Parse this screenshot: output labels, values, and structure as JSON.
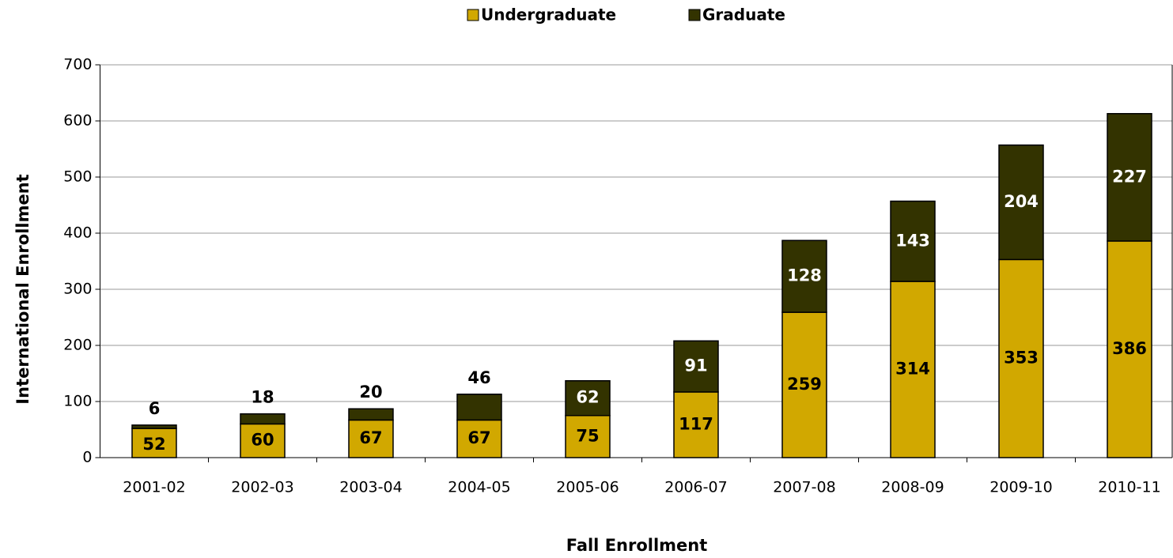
{
  "chart_data": {
    "type": "stacked_bar",
    "x_label": "Fall Enrollment",
    "y_label": "International Enrollment",
    "categories": [
      "2001-02",
      "2002-03",
      "2003-04",
      "2004-05",
      "2005-06",
      "2006-07",
      "2007-08",
      "2008-09",
      "2009-10",
      "2010-11"
    ],
    "series": [
      {
        "name": "Undergraduate",
        "color": "#d1a800",
        "values": [
          52,
          60,
          67,
          67,
          75,
          117,
          259,
          314,
          353,
          386
        ]
      },
      {
        "name": "Graduate",
        "color": "#333300",
        "values": [
          6,
          18,
          20,
          46,
          62,
          91,
          128,
          143,
          204,
          227
        ]
      }
    ],
    "ylim": [
      0,
      700
    ],
    "yticks": [
      0,
      100,
      200,
      300,
      400,
      500,
      600,
      700
    ],
    "grid": true,
    "legend": "top"
  }
}
